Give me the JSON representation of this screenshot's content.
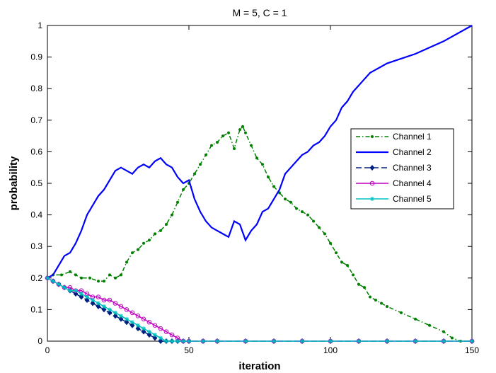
{
  "chart_data": {
    "type": "line",
    "title": "M = 5, C = 1",
    "xlabel": "iteration",
    "ylabel": "probability",
    "xlim": [
      0,
      150
    ],
    "ylim": [
      0,
      1
    ],
    "xticks": [
      "0",
      "50",
      "100",
      "150"
    ],
    "yticks": [
      "0",
      "0.1",
      "0.2",
      "0.3",
      "0.4",
      "0.5",
      "0.6",
      "0.7",
      "0.8",
      "0.9",
      "1"
    ],
    "grid": false,
    "legend_position": "right",
    "series": [
      {
        "name": "Channel 1",
        "color": "#008000",
        "style": "dash-dot",
        "marker": "point",
        "x": [
          0,
          2,
          5,
          8,
          10,
          12,
          15,
          18,
          20,
          22,
          24,
          26,
          28,
          30,
          32,
          34,
          36,
          38,
          40,
          42,
          44,
          46,
          48,
          50,
          52,
          54,
          56,
          58,
          60,
          62,
          64,
          66,
          68,
          69,
          70,
          72,
          74,
          76,
          78,
          80,
          82,
          84,
          86,
          88,
          90,
          92,
          94,
          96,
          98,
          100,
          102,
          104,
          106,
          108,
          110,
          112,
          114,
          116,
          118,
          120,
          125,
          130,
          135,
          140,
          143,
          146,
          150
        ],
        "y": [
          0.2,
          0.21,
          0.21,
          0.22,
          0.21,
          0.2,
          0.2,
          0.19,
          0.19,
          0.21,
          0.2,
          0.21,
          0.25,
          0.28,
          0.29,
          0.31,
          0.32,
          0.34,
          0.35,
          0.37,
          0.4,
          0.44,
          0.48,
          0.5,
          0.53,
          0.56,
          0.59,
          0.62,
          0.63,
          0.65,
          0.66,
          0.61,
          0.67,
          0.68,
          0.66,
          0.62,
          0.58,
          0.56,
          0.52,
          0.49,
          0.47,
          0.45,
          0.44,
          0.42,
          0.41,
          0.4,
          0.38,
          0.36,
          0.34,
          0.31,
          0.28,
          0.25,
          0.24,
          0.21,
          0.18,
          0.17,
          0.14,
          0.13,
          0.12,
          0.11,
          0.09,
          0.07,
          0.05,
          0.03,
          0.01,
          0.0,
          0.0
        ]
      },
      {
        "name": "Channel 2",
        "color": "#0000ff",
        "style": "solid",
        "marker": "none",
        "x": [
          0,
          2,
          4,
          6,
          8,
          10,
          12,
          14,
          16,
          18,
          20,
          22,
          24,
          26,
          28,
          30,
          32,
          34,
          36,
          38,
          40,
          42,
          44,
          46,
          48,
          50,
          52,
          54,
          56,
          58,
          60,
          62,
          64,
          66,
          68,
          70,
          72,
          74,
          76,
          78,
          80,
          82,
          84,
          86,
          88,
          90,
          92,
          94,
          96,
          98,
          100,
          102,
          104,
          106,
          108,
          110,
          112,
          114,
          116,
          118,
          120,
          130,
          140,
          150
        ],
        "y": [
          0.2,
          0.21,
          0.24,
          0.27,
          0.28,
          0.31,
          0.35,
          0.4,
          0.43,
          0.46,
          0.48,
          0.51,
          0.54,
          0.55,
          0.54,
          0.53,
          0.55,
          0.56,
          0.55,
          0.57,
          0.58,
          0.56,
          0.55,
          0.52,
          0.5,
          0.51,
          0.45,
          0.41,
          0.38,
          0.36,
          0.35,
          0.34,
          0.33,
          0.38,
          0.37,
          0.32,
          0.35,
          0.37,
          0.41,
          0.42,
          0.45,
          0.48,
          0.53,
          0.55,
          0.57,
          0.59,
          0.6,
          0.62,
          0.63,
          0.65,
          0.68,
          0.7,
          0.74,
          0.76,
          0.79,
          0.81,
          0.83,
          0.85,
          0.86,
          0.87,
          0.88,
          0.91,
          0.95,
          1.0
        ]
      },
      {
        "name": "Channel 3",
        "color": "#002080",
        "style": "dashed",
        "marker": "diamond",
        "x": [
          0,
          2,
          4,
          6,
          8,
          10,
          12,
          14,
          16,
          18,
          20,
          22,
          24,
          26,
          28,
          30,
          32,
          34,
          36,
          38,
          40,
          42,
          44,
          46,
          48,
          50,
          55,
          60,
          70,
          80,
          90,
          100,
          110,
          120,
          130,
          140,
          150
        ],
        "y": [
          0.2,
          0.19,
          0.18,
          0.17,
          0.16,
          0.15,
          0.14,
          0.13,
          0.12,
          0.11,
          0.1,
          0.09,
          0.08,
          0.07,
          0.06,
          0.05,
          0.04,
          0.03,
          0.02,
          0.01,
          0.0,
          0.0,
          0.0,
          0.0,
          0.0,
          0.0,
          0.0,
          0.0,
          0.0,
          0.0,
          0.0,
          0.0,
          0.0,
          0.0,
          0.0,
          0.0,
          0.0
        ]
      },
      {
        "name": "Channel 4",
        "color": "#c000c0",
        "style": "solid",
        "marker": "circle",
        "x": [
          0,
          2,
          4,
          6,
          8,
          10,
          12,
          14,
          16,
          18,
          20,
          22,
          24,
          26,
          28,
          30,
          32,
          34,
          36,
          38,
          40,
          42,
          44,
          46,
          48,
          50,
          55,
          60,
          70,
          80,
          90,
          100,
          110,
          120,
          130,
          140,
          150
        ],
        "y": [
          0.2,
          0.19,
          0.18,
          0.17,
          0.17,
          0.16,
          0.16,
          0.15,
          0.14,
          0.14,
          0.13,
          0.13,
          0.12,
          0.11,
          0.1,
          0.09,
          0.08,
          0.07,
          0.06,
          0.05,
          0.04,
          0.03,
          0.02,
          0.01,
          0.0,
          0.0,
          0.0,
          0.0,
          0.0,
          0.0,
          0.0,
          0.0,
          0.0,
          0.0,
          0.0,
          0.0,
          0.0
        ]
      },
      {
        "name": "Channel 5",
        "color": "#00c0c0",
        "style": "solid",
        "marker": "star",
        "x": [
          0,
          2,
          4,
          6,
          8,
          10,
          12,
          14,
          16,
          18,
          20,
          22,
          24,
          26,
          28,
          30,
          32,
          34,
          36,
          38,
          40,
          42,
          44,
          46,
          48,
          50,
          55,
          60,
          70,
          80,
          90,
          100,
          110,
          120,
          130,
          140,
          150
        ],
        "y": [
          0.2,
          0.19,
          0.18,
          0.17,
          0.16,
          0.16,
          0.15,
          0.14,
          0.13,
          0.12,
          0.11,
          0.1,
          0.09,
          0.08,
          0.07,
          0.06,
          0.05,
          0.04,
          0.03,
          0.02,
          0.01,
          0.0,
          0.0,
          0.0,
          0.0,
          0.0,
          0.0,
          0.0,
          0.0,
          0.0,
          0.0,
          0.0,
          0.0,
          0.0,
          0.0,
          0.0,
          0.0
        ]
      }
    ]
  }
}
